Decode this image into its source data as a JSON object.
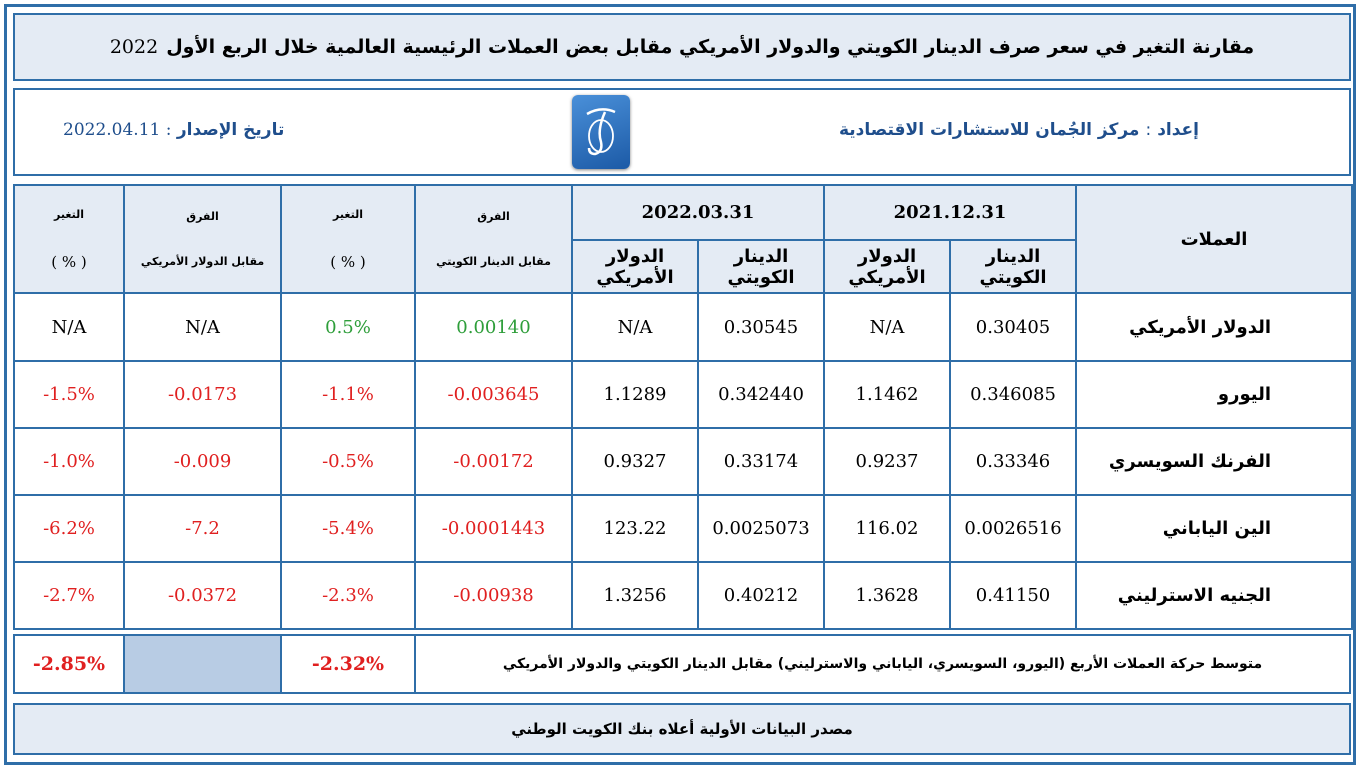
{
  "title": {
    "text": "مقارنة التغير في سعر صرف الدينار الكويتي والدولار الأمريكي مقابل بعض العملات الرئيسية العالمية خلال الربع الأول",
    "year": "2022"
  },
  "info": {
    "prepared_label": "إعداد",
    "colon": ":",
    "prepared_by": "مركز الجُمان للاستشارات الاقتصادية",
    "issue_label": "تاريخ الإصدار",
    "issue_date": "2022.04.11",
    "logo_letter": "J"
  },
  "table": {
    "currencies_header": "العملات",
    "date1": "2021.12.31",
    "date2": "2022.03.31",
    "kwd_col": "الدينار الكويتي",
    "usd_col": "الدولار الأمريكي",
    "diff_label": "الفرق",
    "diff_vs_kwd": "مقابل الدينار الكويتي",
    "change_label": "التغير",
    "pct": "( % )",
    "diff_vs_usd": "مقابل الدولار الأمريكي",
    "rows": [
      {
        "name": "الدولار الأمريكي",
        "kwd1": "0.30405",
        "usd1": "N/A",
        "kwd2": "0.30545",
        "usd2": "N/A",
        "diff_kwd": "0.00140",
        "chg_kwd": "0.5%",
        "diff_usd": "N/A",
        "chg_usd": "N/A"
      },
      {
        "name": "اليورو",
        "kwd1": "0.346085",
        "usd1": "1.1462",
        "kwd2": "0.342440",
        "usd2": "1.1289",
        "diff_kwd": "-0.003645",
        "chg_kwd": "-1.1%",
        "diff_usd": "-0.0173",
        "chg_usd": "-1.5%"
      },
      {
        "name": "الفرنك السويسري",
        "kwd1": "0.33346",
        "usd1": "0.9237",
        "kwd2": "0.33174",
        "usd2": "0.9327",
        "diff_kwd": "-0.00172",
        "chg_kwd": "-0.5%",
        "diff_usd": "-0.009",
        "chg_usd": "-1.0%"
      },
      {
        "name": "الين الياباني",
        "kwd1": "0.0026516",
        "usd1": "116.02",
        "kwd2": "0.0025073",
        "usd2": "123.22",
        "diff_kwd": "-0.0001443",
        "chg_kwd": "-5.4%",
        "diff_usd": "-7.2",
        "chg_usd": "-6.2%"
      },
      {
        "name": "الجنيه الاسترليني",
        "kwd1": "0.41150",
        "usd1": "1.3628",
        "kwd2": "0.40212",
        "usd2": "1.3256",
        "diff_kwd": "-0.00938",
        "chg_kwd": "-2.3%",
        "diff_usd": "-0.0372",
        "chg_usd": "-2.7%"
      }
    ]
  },
  "average": {
    "text": "متوسط حركة العملات الأربع (اليورو، السويسري، الياباني والاسترليني) مقابل الدينار الكويتي والدولار الأمريكي",
    "vs_kwd": "-2.32%",
    "vs_usd": "-2.85%"
  },
  "source": "مصدر البيانات الأولية أعلاه بنك الكويت الوطني",
  "colors": {
    "border": "#2f6ea8",
    "header_bg": "#e4ebf4",
    "positive": "#2e9e3a",
    "negative": "#e02020",
    "empty_cell": "#b8cce4",
    "accent_text": "#1f4e8c"
  }
}
